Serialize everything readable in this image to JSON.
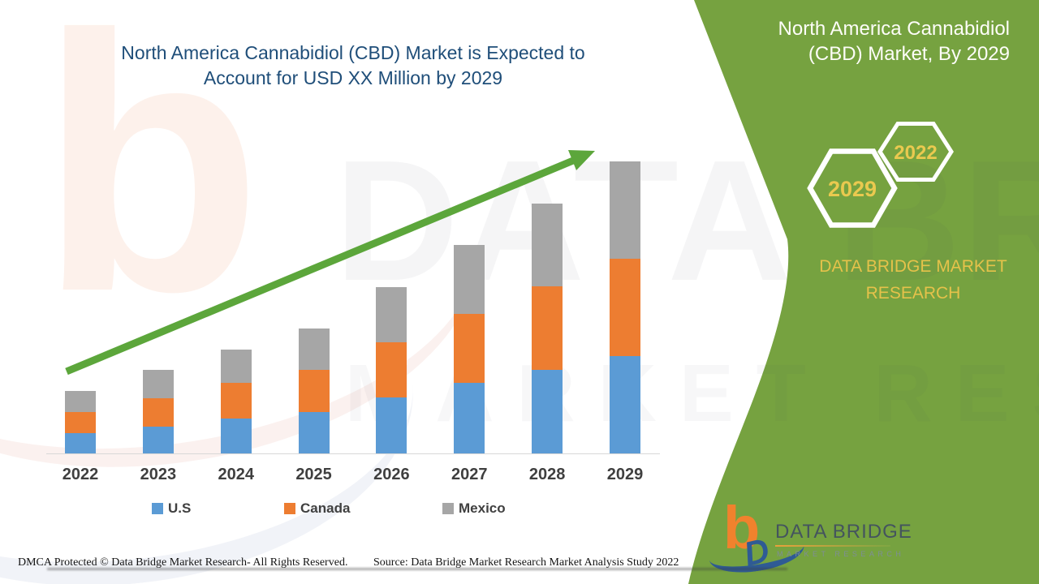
{
  "header": {
    "title_line1": "North America Cannabidiol (CBD) Market is Expected to",
    "title_line2": "Account for USD XX Million by 2029"
  },
  "chart_data": {
    "type": "bar",
    "stacked": true,
    "title": "North America Cannabidiol (CBD) Market is Expected to Account for USD XX Million by 2029",
    "categories": [
      "2022",
      "2023",
      "2024",
      "2025",
      "2026",
      "2027",
      "2028",
      "2029"
    ],
    "series": [
      {
        "name": "U.S",
        "color": "#5B9BD5",
        "values": [
          25,
          33,
          43,
          51,
          69,
          87,
          103,
          120
        ]
      },
      {
        "name": "Canada",
        "color": "#ED7D31",
        "values": [
          26,
          35,
          44,
          52,
          68,
          85,
          103,
          120
        ]
      },
      {
        "name": "Mexico",
        "color": "#A6A6A6",
        "values": [
          26,
          35,
          41,
          51,
          68,
          85,
          102,
          120
        ]
      }
    ],
    "xlabel": "",
    "ylabel": "",
    "units": "relative units (y-axis unlabeled; values shown as USD XX Million)",
    "ylim": [
      0,
      380
    ],
    "grid": false,
    "legend_position": "bottom",
    "annotations": [
      "rising green trend arrow from 2022 to 2029"
    ]
  },
  "side_panel": {
    "bg_color": "#76A240",
    "title_line1": "North America Cannabidiol",
    "title_line2": "(CBD) Market, By 2029",
    "badge_front": "2029",
    "badge_back": "2022",
    "org_line1": "DATA BRIDGE MARKET",
    "org_line2": "RESEARCH",
    "gold_color": "#E5C24A"
  },
  "watermark": {
    "letter": "b",
    "line1": "DATA BRIDGE",
    "line2": "MARKET RESEARCH"
  },
  "logo": {
    "glyph_b": "b",
    "glyph_d": "D",
    "name": "DATA BRIDGE",
    "tagline": "MARKET RESEARCH"
  },
  "footer": {
    "dmca": "DMCA Protected © Data Bridge Market Research- All Rights Reserved.",
    "source": "Source: Data Bridge Market Research Market Analysis Study 2022"
  },
  "trend_arrow_color": "#5CA63B"
}
